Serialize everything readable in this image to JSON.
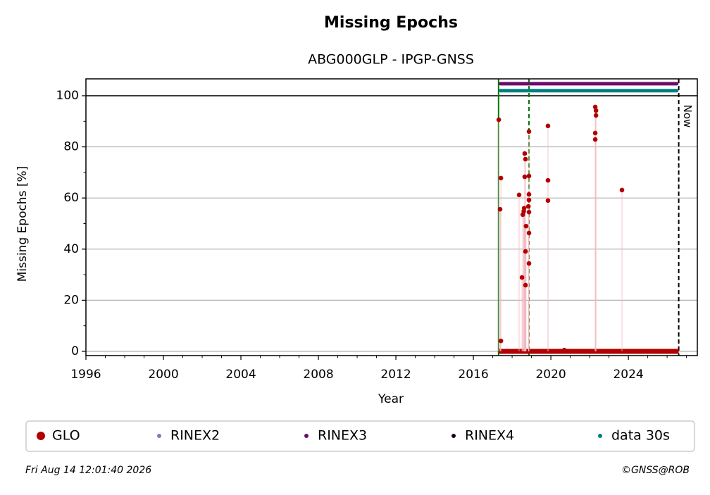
{
  "chart_data": {
    "type": "scatter",
    "title": "Missing Epochs",
    "subtitle": "ABG000GLP - IPGP-GNSS",
    "x_label": "Year",
    "y_label": "Missing Epochs [%]",
    "xlim": [
      1996,
      2027.56
    ],
    "ylim": [
      -1.65,
      106.6
    ],
    "xticks": [
      1996,
      2000,
      2004,
      2008,
      2012,
      2016,
      2020,
      2024
    ],
    "yticks": [
      0,
      20,
      40,
      60,
      80,
      100
    ],
    "grid": true,
    "series": [
      {
        "name": "GLO",
        "color": "#b30000",
        "style": "scatter",
        "x": [
          2017.31,
          2017.42,
          2017.38,
          2017.42,
          2018.36,
          2018.51,
          2018.65,
          2018.69,
          2018.65,
          2018.6,
          2018.55,
          2018.62,
          2018.69,
          2018.69,
          2018.72,
          2018.87,
          2018.87,
          2018.87,
          2018.87,
          2018.84,
          2018.87,
          2018.87,
          2018.87,
          2019.85,
          2019.85,
          2019.85,
          2022.29,
          2022.33,
          2022.33,
          2022.29,
          2022.29,
          2023.67,
          2020.69
        ],
        "values": [
          90.6,
          67.8,
          55.6,
          4.1,
          61.2,
          28.9,
          77.4,
          75.2,
          68.3,
          54.8,
          53.5,
          56.0,
          39.1,
          25.9,
          49.0,
          86.0,
          68.6,
          61.4,
          59.2,
          56.7,
          54.5,
          46.3,
          34.4,
          88.2,
          66.9,
          59.0,
          95.6,
          94.2,
          92.3,
          85.4,
          82.9,
          63.1,
          0.5
        ],
        "zero_span": {
          "x": [
            2017.3,
            2026.6
          ],
          "values": [
            0,
            0
          ]
        }
      },
      {
        "name": "RINEX2",
        "color": "#7b7bbf",
        "style": "band",
        "x": [],
        "values": []
      },
      {
        "name": "RINEX3",
        "color": "#6a0d6a",
        "style": "band",
        "x": [
          2017.4,
          2026.5
        ],
        "values": [
          104.7,
          104.7
        ]
      },
      {
        "name": "RINEX4",
        "color": "#1a0020",
        "style": "band",
        "x": [],
        "values": []
      },
      {
        "name": "data 30s",
        "color": "#008080",
        "style": "band",
        "x": [
          2017.4,
          2026.5
        ],
        "values": [
          102,
          102
        ]
      }
    ],
    "vlines": [
      {
        "x": 2017.3,
        "color": "#007700",
        "dash": false
      },
      {
        "x": 2018.87,
        "color": "#007700",
        "dash": true
      }
    ],
    "now_line": {
      "x": 2026.6,
      "label": "Now"
    },
    "reference_line": 100,
    "timestamp": "Fri Aug 14 12:01:40 2026",
    "copyright": "©GNSS@ROB"
  }
}
